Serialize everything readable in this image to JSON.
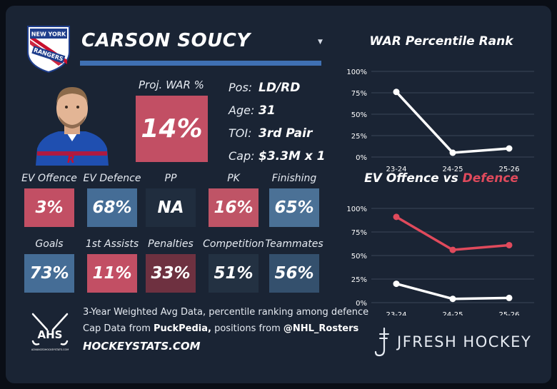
{
  "player": {
    "name": "CARSON SOUCY",
    "team": "New York Rangers",
    "team_logo_text": [
      "NEW YORK",
      "RANGERS"
    ],
    "pos_label": "Pos:",
    "pos_value": "LD/RD",
    "age_label": "Age:",
    "age_value": "31",
    "toi_label": "TOI:",
    "toi_value": "3rd Pair",
    "cap_label": "Cap:",
    "cap_value": "$3.3M x 1"
  },
  "proj_war": {
    "label": "Proj. WAR %",
    "value": "14%",
    "percentile": 14,
    "color": "#c24f64"
  },
  "stats": [
    {
      "label": "EV Offence",
      "value": "3%",
      "color": "#c24f64"
    },
    {
      "label": "EV Defence",
      "value": "68%",
      "color": "#456d96"
    },
    {
      "label": "PP",
      "value": "NA",
      "color": "#202d3e"
    },
    {
      "label": "PK",
      "value": "16%",
      "color": "#bf5466"
    },
    {
      "label": "Finishing",
      "value": "65%",
      "color": "#4b7196"
    },
    {
      "label": "Goals",
      "value": "73%",
      "color": "#456d96"
    },
    {
      "label": "1st Assists",
      "value": "11%",
      "color": "#c24f64"
    },
    {
      "label": "Penalties",
      "value": "33%",
      "color": "#6e3140"
    },
    {
      "label": "Competition",
      "value": "51%",
      "color": "#233142"
    },
    {
      "label": "Teammates",
      "value": "56%",
      "color": "#34506d"
    }
  ],
  "footer": {
    "line1": "3-Year Weighted Avg Data, percentile ranking among defence",
    "line2_prefix": "Cap Data from ",
    "line2_source": "PuckPedia,",
    "line2_mid": " positions from ",
    "line2_handle": "@NHL_Rosters",
    "site": "HOCKEYSTATS.COM",
    "ahs_logo_text": "AHS",
    "ahs_logo_subtext": "ADVANCEDHOCKEYSTATS.COM",
    "brand": "JFRESH HOCKEY"
  },
  "colors": {
    "background": "#1a2434",
    "accent_blue": "#3f70b3",
    "red": "#e04a5c",
    "white": "#ffffff"
  },
  "chart_data": [
    {
      "type": "line",
      "title": "WAR Percentile Rank",
      "categories": [
        "23-24",
        "24-25",
        "25-26"
      ],
      "series": [
        {
          "name": "WAR Percentile",
          "values": [
            76,
            5,
            10
          ],
          "color": "#ffffff"
        }
      ],
      "ylim": [
        0,
        100
      ],
      "yticks": [
        0,
        25,
        50,
        75,
        100
      ],
      "ytick_labels": [
        "0%",
        "25%",
        "50%",
        "75%",
        "100%"
      ],
      "xlabel": "",
      "ylabel": ""
    },
    {
      "type": "line",
      "title": "EV Offence vs Defence",
      "title_parts": [
        "EV Offence vs ",
        "Defence"
      ],
      "categories": [
        "23-24",
        "24-25",
        "25-26"
      ],
      "series": [
        {
          "name": "EV Defence",
          "values": [
            91,
            56,
            61
          ],
          "color": "#e04a5c"
        },
        {
          "name": "EV Offence",
          "values": [
            20,
            4,
            5
          ],
          "color": "#ffffff"
        }
      ],
      "ylim": [
        0,
        100
      ],
      "yticks": [
        0,
        25,
        50,
        75,
        100
      ],
      "ytick_labels": [
        "0%",
        "25%",
        "50%",
        "75%",
        "100%"
      ],
      "xlabel": "",
      "ylabel": ""
    }
  ]
}
